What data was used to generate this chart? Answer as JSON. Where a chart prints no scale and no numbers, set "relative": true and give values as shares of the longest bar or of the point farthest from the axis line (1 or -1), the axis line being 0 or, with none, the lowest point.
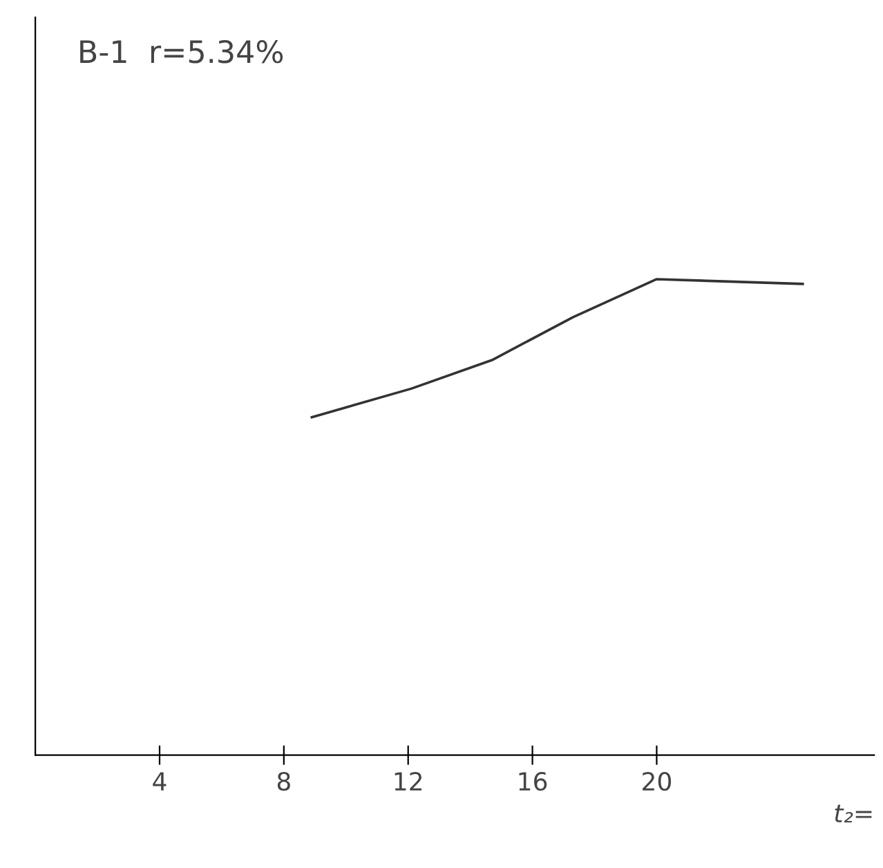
{
  "chart_data": {
    "type": "line",
    "title": "B-1  r=5.34%",
    "xlabel": "t₂=",
    "relative": true,
    "x": [
      8.9,
      12.1,
      14.7,
      17.3,
      20.0,
      24.7
    ],
    "series": [
      {
        "color": "#333333",
        "values": [
          0.71,
          0.77,
          0.83,
          0.92,
          1.0,
          0.99
        ]
      }
    ],
    "xlim": [
      0,
      27
    ],
    "xticks": [
      4,
      8,
      12,
      16,
      20
    ],
    "grid": false,
    "legend": false,
    "marker": "none",
    "line_style": "solid"
  }
}
